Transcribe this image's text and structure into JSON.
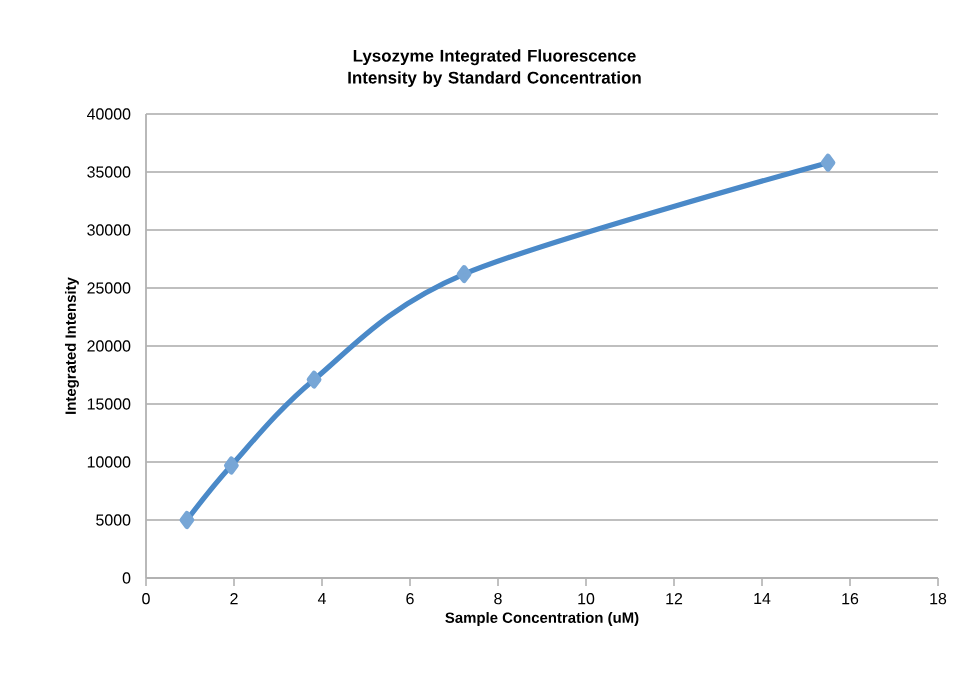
{
  "chart_data": {
    "type": "line",
    "title": "Lysozyme Integrated Fluorescence Intensity by Standard Concentration",
    "xlabel": "Sample Concentration (uM)",
    "ylabel": "Integrated Intensity",
    "x": [
      0.93,
      1.94,
      3.82,
      7.23,
      15.5
    ],
    "series": [
      {
        "color": "#4a89c8",
        "values": [
          5000,
          9700,
          17100,
          26200,
          35800
        ]
      }
    ],
    "xlim": [
      0,
      18
    ],
    "xticks": [
      0,
      2,
      4,
      6,
      8,
      10,
      12,
      14,
      16,
      18
    ],
    "ylim": [
      0,
      40000
    ],
    "yticks": [
      0,
      5000,
      10000,
      15000,
      20000,
      25000,
      30000,
      35000,
      40000
    ],
    "grid": "y",
    "marker": "diamond",
    "line_style": "solid"
  }
}
